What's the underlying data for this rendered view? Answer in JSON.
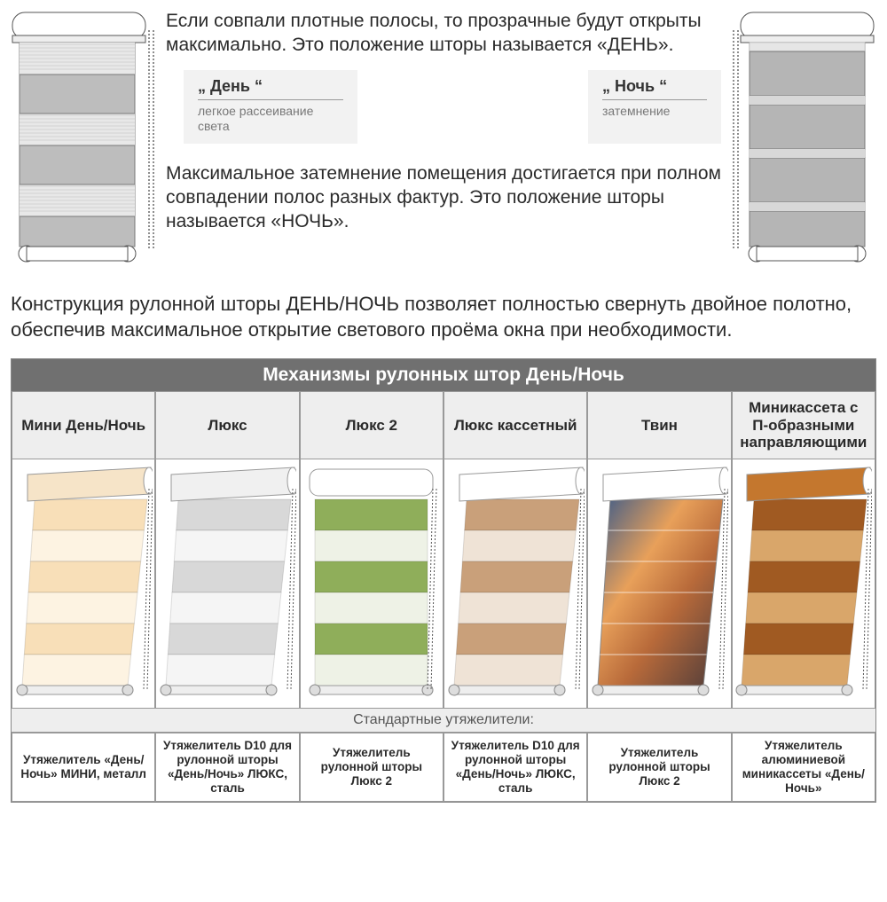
{
  "intro": {
    "para1": "Если совпали плотные полосы, то прозрачные будут открыты максимально.   Это положение шторы называется «ДЕНЬ».",
    "para2": "Максимальное затемнение помещения достигается при полном  совпадении полос разных фактур. Это положение шторы называется «НОЧЬ».",
    "para3": "Конструкция рулонной шторы ДЕНЬ/НОЧЬ  позволяет полностью  свернуть двойное полотно, обеспечив  максимальное  открытие светового проёма окна при необходимости."
  },
  "modes": {
    "day": {
      "title": "„ День “",
      "sub": "легкое рассеивание света"
    },
    "night": {
      "title": "„ Ночь “",
      "sub": "затемнение"
    }
  },
  "table": {
    "title": "Механизмы рулонных штор День/Ночь",
    "columns": [
      "Мини День/Ночь",
      "Люкс",
      "Люкс 2",
      "Люкс кассетный",
      "Твин",
      "Миникассета с П‑образными направляющими"
    ],
    "weights_title": "Стандартные утяжелители:",
    "weights": [
      "Утяжелитель «День/Ночь» МИНИ, металл",
      "Утяжелитель D10 для рулонной шторы «День/Ночь»  ЛЮКС, сталь",
      "Утяжелитель рулонной шторы Люкс 2",
      "Утяжелитель D10 для рулонной шторы «День/Ночь»  ЛЮКС, сталь",
      "Утяжелитель рулонной шторы Люкс 2",
      "Утяжелитель алюминиевой миникассеты «День/Ночь»"
    ],
    "blinds": [
      {
        "cassette": "#f6e4c8",
        "stripe": "#f8dfb8",
        "sheer": "#fdf3e2",
        "persp": true
      },
      {
        "cassette": "#f0f0f0",
        "stripe": "#d8d8d8",
        "sheer": "#f5f5f5",
        "persp": true
      },
      {
        "cassette": "#ffffff",
        "stripe": "#8fae5a",
        "sheer": "#eef2e6",
        "persp": false
      },
      {
        "cassette": "#ffffff",
        "stripe": "#c9a07a",
        "sheer": "#efe3d6",
        "persp": true
      },
      {
        "cassette": "#ffffff",
        "stripe": "#d08a5a",
        "sheer": "#e8d4c0",
        "persp": true,
        "photo": true
      },
      {
        "cassette": "#c4772e",
        "stripe": "#a05a22",
        "sheer": "#d9a66a",
        "persp": true
      }
    ]
  },
  "colors": {
    "text": "#2a2a2a",
    "header_bg": "#707070",
    "cell_bg": "#eeeeee",
    "border": "#999999"
  }
}
